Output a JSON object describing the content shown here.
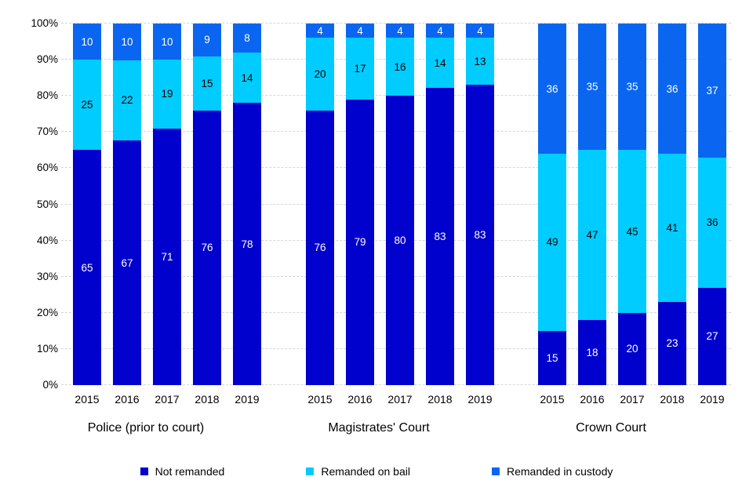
{
  "chart_data": {
    "type": "bar",
    "variant": "100%-stacked-column",
    "title": "",
    "ylim": [
      0,
      100
    ],
    "y_ticks": [
      "0%",
      "10%",
      "20%",
      "30%",
      "40%",
      "50%",
      "60%",
      "70%",
      "80%",
      "90%",
      "100%"
    ],
    "grid": "dashed horizontal gridlines at every 10%",
    "legend_position": "bottom",
    "categories_years": [
      "2015",
      "2016",
      "2017",
      "2018",
      "2019"
    ],
    "series_legend": [
      {
        "label": "Not remanded",
        "color": "#0101cd",
        "label_text_color": "#ffffff"
      },
      {
        "label": "Remanded on bail",
        "color": "#00ccff",
        "label_text_color": "#000000"
      },
      {
        "label": "Remanded in custody",
        "color": "#0a66f0",
        "label_text_color": "#ffffff"
      }
    ],
    "groups": [
      {
        "label": "Police (prior to court)",
        "series": [
          {
            "name": "Not remanded",
            "values": [
              65,
              67,
              71,
              76,
              78
            ]
          },
          {
            "name": "Remanded on bail",
            "values": [
              25,
              22,
              19,
              15,
              14
            ]
          },
          {
            "name": "Remanded in custody",
            "values": [
              10,
              10,
              10,
              9,
              8
            ]
          }
        ]
      },
      {
        "label": "Magistrates' Court",
        "series": [
          {
            "name": "Not remanded",
            "values": [
              76,
              79,
              80,
              83,
              83
            ]
          },
          {
            "name": "Remanded on bail",
            "values": [
              20,
              17,
              16,
              14,
              13
            ]
          },
          {
            "name": "Remanded in custody",
            "values": [
              4,
              4,
              4,
              4,
              4
            ]
          }
        ]
      },
      {
        "label": "Crown Court",
        "series": [
          {
            "name": "Not remanded",
            "values": [
              15,
              18,
              20,
              23,
              27
            ]
          },
          {
            "name": "Remanded on bail",
            "values": [
              49,
              47,
              45,
              41,
              36
            ]
          },
          {
            "name": "Remanded in custody",
            "values": [
              36,
              35,
              35,
              36,
              37
            ]
          }
        ]
      }
    ]
  }
}
